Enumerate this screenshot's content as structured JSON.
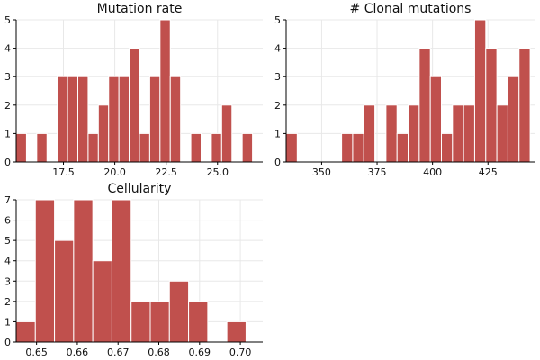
{
  "colors": {
    "bar": "#c0504d"
  },
  "chart_data": [
    {
      "type": "bar",
      "title": "Mutation rate",
      "xlim": [
        15.2,
        27.2
      ],
      "ylim": [
        0,
        5
      ],
      "yticks": [
        0,
        1,
        2,
        3,
        4,
        5
      ],
      "xticks": [
        17.5,
        20.0,
        22.5,
        25.0
      ],
      "xtick_labels": [
        "17.5",
        "20.0",
        "22.5",
        "25.0"
      ],
      "bin_width": 0.5,
      "bins": [
        {
          "x": 15.2,
          "count": 1
        },
        {
          "x": 15.7,
          "count": 0
        },
        {
          "x": 16.2,
          "count": 1
        },
        {
          "x": 16.7,
          "count": 0
        },
        {
          "x": 17.2,
          "count": 3
        },
        {
          "x": 17.7,
          "count": 3
        },
        {
          "x": 18.2,
          "count": 3
        },
        {
          "x": 18.7,
          "count": 1
        },
        {
          "x": 19.2,
          "count": 2
        },
        {
          "x": 19.7,
          "count": 3
        },
        {
          "x": 20.2,
          "count": 3
        },
        {
          "x": 20.7,
          "count": 4
        },
        {
          "x": 21.2,
          "count": 1
        },
        {
          "x": 21.7,
          "count": 3
        },
        {
          "x": 22.2,
          "count": 5
        },
        {
          "x": 22.7,
          "count": 3
        },
        {
          "x": 23.2,
          "count": 0
        },
        {
          "x": 23.7,
          "count": 1
        },
        {
          "x": 24.2,
          "count": 0
        },
        {
          "x": 24.7,
          "count": 1
        },
        {
          "x": 25.2,
          "count": 2
        },
        {
          "x": 25.7,
          "count": 0
        },
        {
          "x": 26.2,
          "count": 1
        }
      ]
    },
    {
      "type": "bar",
      "title": "# Clonal mutations",
      "xlim": [
        334,
        446
      ],
      "ylim": [
        0,
        5
      ],
      "yticks": [
        0,
        1,
        2,
        3,
        4,
        5
      ],
      "xticks": [
        350,
        375,
        400,
        425
      ],
      "xtick_labels": [
        "350",
        "375",
        "400",
        "425"
      ],
      "bin_width": 5,
      "bins": [
        {
          "x": 334,
          "count": 1
        },
        {
          "x": 339,
          "count": 0
        },
        {
          "x": 344,
          "count": 0
        },
        {
          "x": 349,
          "count": 0
        },
        {
          "x": 354,
          "count": 0
        },
        {
          "x": 359,
          "count": 1
        },
        {
          "x": 364,
          "count": 1
        },
        {
          "x": 369,
          "count": 2
        },
        {
          "x": 374,
          "count": 0
        },
        {
          "x": 379,
          "count": 2
        },
        {
          "x": 384,
          "count": 1
        },
        {
          "x": 389,
          "count": 2
        },
        {
          "x": 394,
          "count": 4
        },
        {
          "x": 399,
          "count": 3
        },
        {
          "x": 404,
          "count": 1
        },
        {
          "x": 409,
          "count": 2
        },
        {
          "x": 414,
          "count": 2
        },
        {
          "x": 419,
          "count": 5
        },
        {
          "x": 424,
          "count": 4
        },
        {
          "x": 429,
          "count": 2
        },
        {
          "x": 434,
          "count": 3
        },
        {
          "x": 439,
          "count": 4
        }
      ]
    },
    {
      "type": "bar",
      "title": "Cellularity",
      "xlim": [
        0.645,
        0.7055
      ],
      "ylim": [
        0,
        7
      ],
      "yticks": [
        0,
        1,
        2,
        3,
        4,
        5,
        6,
        7
      ],
      "xticks": [
        0.65,
        0.66,
        0.67,
        0.68,
        0.69,
        0.7
      ],
      "xtick_labels": [
        "0.65",
        "0.66",
        "0.67",
        "0.68",
        "0.69",
        "0.70"
      ],
      "bin_width": 0.0047,
      "bins": [
        {
          "x": 0.645,
          "count": 1
        },
        {
          "x": 0.6497,
          "count": 7
        },
        {
          "x": 0.6544,
          "count": 5
        },
        {
          "x": 0.6591,
          "count": 7
        },
        {
          "x": 0.6638,
          "count": 4
        },
        {
          "x": 0.6685,
          "count": 7
        },
        {
          "x": 0.6732,
          "count": 2
        },
        {
          "x": 0.6779,
          "count": 2
        },
        {
          "x": 0.6826,
          "count": 3
        },
        {
          "x": 0.6873,
          "count": 2
        },
        {
          "x": 0.692,
          "count": 0
        },
        {
          "x": 0.6967,
          "count": 1
        }
      ]
    }
  ]
}
